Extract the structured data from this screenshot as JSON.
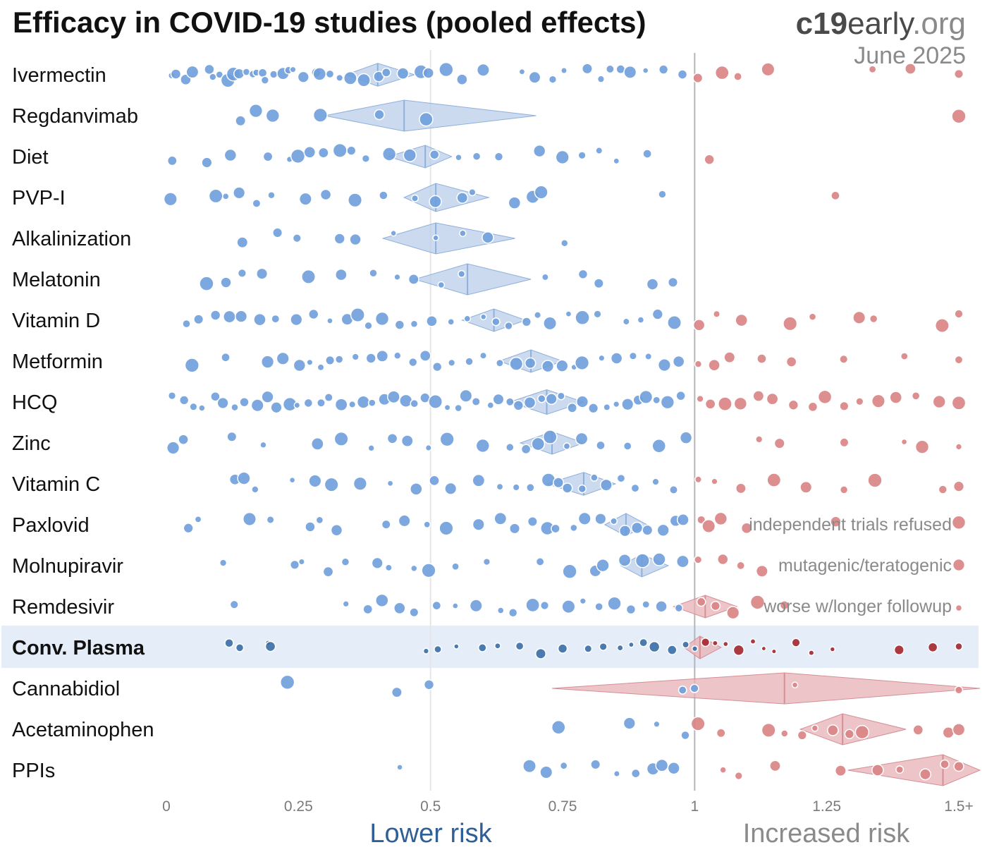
{
  "header": {
    "title": "Efficacy in COVID-19 studies (pooled effects)",
    "brand_bold": "c19",
    "brand_rest": "early",
    "brand_tld": ".org",
    "date": "June 2025"
  },
  "axis": {
    "lower_label": "Lower risk",
    "higher_label": "Increased risk"
  },
  "colors": {
    "benefit_point": "#6f9fdc",
    "harm_point": "#d98384",
    "benefit_diamond": "#b9cde9",
    "harm_diamond": "#e7b0b5",
    "highlight_row": "#e5edf8",
    "highlight_benefit": "#3a6ea5",
    "highlight_harm": "#a3262c",
    "lower_label": "#2f5f96",
    "higher_label": "#8a8a8a"
  },
  "chart_data": {
    "type": "scatter",
    "xlim": [
      0,
      1.5
    ],
    "x_ticks": [
      0,
      0.25,
      0.5,
      0.75,
      1,
      1.25,
      1.5
    ],
    "x_tick_labels": [
      "0",
      "0.25",
      "0.5",
      "0.75",
      "1",
      "1.25",
      "1.5+"
    ],
    "reference_line": 1,
    "rows": [
      {
        "name": "Ivermectin",
        "pooled": 0.4,
        "ci": [
          0.34,
          0.47
        ],
        "highlight": false,
        "annotation": "",
        "points": [
          0.01,
          0.02,
          0.04,
          0.05,
          0.08,
          0.09,
          0.1,
          0.12,
          0.13,
          0.14,
          0.15,
          0.16,
          0.17,
          0.18,
          0.19,
          0.2,
          0.22,
          0.23,
          0.24,
          0.26,
          0.28,
          0.29,
          0.31,
          0.33,
          0.35,
          0.37,
          0.4,
          0.42,
          0.45,
          0.48,
          0.5,
          0.53,
          0.56,
          0.6,
          0.67,
          0.7,
          0.73,
          0.75,
          0.8,
          0.82,
          0.84,
          0.86,
          0.88,
          0.91,
          0.94,
          0.98,
          1.01,
          1.05,
          1.08,
          1.14,
          1.34,
          1.41,
          1.5
        ]
      },
      {
        "name": "Regdanvimab",
        "pooled": 0.45,
        "ci": [
          0.3,
          0.7
        ],
        "highlight": false,
        "annotation": "",
        "points": [
          0.14,
          0.17,
          0.2,
          0.29,
          0.4,
          0.49,
          1.5
        ]
      },
      {
        "name": "Diet",
        "pooled": 0.49,
        "ci": [
          0.42,
          0.54
        ],
        "highlight": false,
        "annotation": "",
        "points": [
          0.01,
          0.08,
          0.12,
          0.19,
          0.23,
          0.25,
          0.27,
          0.3,
          0.33,
          0.35,
          0.38,
          0.42,
          0.46,
          0.51,
          0.55,
          0.59,
          0.63,
          0.71,
          0.75,
          0.79,
          0.82,
          0.85,
          0.91,
          1.03
        ]
      },
      {
        "name": "PVP-I",
        "pooled": 0.51,
        "ci": [
          0.45,
          0.61
        ],
        "highlight": false,
        "annotation": "",
        "points": [
          0.01,
          0.09,
          0.11,
          0.14,
          0.17,
          0.2,
          0.26,
          0.3,
          0.36,
          0.41,
          0.47,
          0.51,
          0.56,
          0.58,
          0.66,
          0.69,
          0.71,
          0.94,
          1.27
        ]
      },
      {
        "name": "Alkalinization",
        "pooled": 0.51,
        "ci": [
          0.41,
          0.66
        ],
        "highlight": false,
        "annotation": "",
        "points": [
          0.14,
          0.21,
          0.25,
          0.33,
          0.36,
          0.43,
          0.51,
          0.56,
          0.61,
          0.75
        ]
      },
      {
        "name": "Melatonin",
        "pooled": 0.57,
        "ci": [
          0.47,
          0.69
        ],
        "highlight": false,
        "annotation": "",
        "points": [
          0.08,
          0.11,
          0.14,
          0.18,
          0.27,
          0.33,
          0.39,
          0.44,
          0.47,
          0.52,
          0.56,
          0.72,
          0.79,
          0.82,
          0.92,
          0.96
        ]
      },
      {
        "name": "Vitamin D",
        "pooled": 0.62,
        "ci": [
          0.56,
          0.68
        ],
        "highlight": false,
        "annotation": "",
        "points": [
          0.04,
          0.06,
          0.09,
          0.12,
          0.14,
          0.18,
          0.21,
          0.25,
          0.28,
          0.31,
          0.34,
          0.36,
          0.38,
          0.41,
          0.44,
          0.47,
          0.5,
          0.54,
          0.57,
          0.6,
          0.62,
          0.65,
          0.68,
          0.7,
          0.73,
          0.76,
          0.79,
          0.82,
          0.87,
          0.9,
          0.93,
          0.96,
          1.01,
          1.04,
          1.09,
          1.18,
          1.22,
          1.31,
          1.34,
          1.47,
          1.5
        ]
      },
      {
        "name": "Metformin",
        "pooled": 0.69,
        "ci": [
          0.63,
          0.75
        ],
        "highlight": false,
        "annotation": "",
        "points": [
          0.05,
          0.11,
          0.19,
          0.22,
          0.25,
          0.27,
          0.29,
          0.31,
          0.33,
          0.36,
          0.39,
          0.41,
          0.44,
          0.47,
          0.49,
          0.51,
          0.54,
          0.57,
          0.6,
          0.63,
          0.66,
          0.69,
          0.72,
          0.75,
          0.77,
          0.79,
          0.82,
          0.85,
          0.88,
          0.91,
          0.94,
          0.97,
          1.01,
          1.04,
          1.07,
          1.13,
          1.18,
          1.28,
          1.4,
          1.5
        ]
      },
      {
        "name": "HCQ",
        "pooled": 0.72,
        "ci": [
          0.65,
          0.79
        ],
        "highlight": false,
        "annotation": "",
        "points": [
          0.01,
          0.03,
          0.05,
          0.07,
          0.09,
          0.11,
          0.13,
          0.15,
          0.17,
          0.19,
          0.21,
          0.23,
          0.25,
          0.27,
          0.29,
          0.31,
          0.33,
          0.35,
          0.37,
          0.39,
          0.41,
          0.43,
          0.45,
          0.47,
          0.49,
          0.51,
          0.53,
          0.55,
          0.57,
          0.59,
          0.61,
          0.63,
          0.65,
          0.67,
          0.69,
          0.71,
          0.73,
          0.75,
          0.77,
          0.79,
          0.81,
          0.83,
          0.85,
          0.87,
          0.89,
          0.91,
          0.93,
          0.95,
          0.97,
          1.01,
          1.03,
          1.06,
          1.09,
          1.12,
          1.15,
          1.19,
          1.22,
          1.25,
          1.28,
          1.31,
          1.35,
          1.38,
          1.42,
          1.46,
          1.5
        ]
      },
      {
        "name": "Zinc",
        "pooled": 0.73,
        "ci": [
          0.67,
          0.79
        ],
        "highlight": false,
        "annotation": "",
        "points": [
          0.01,
          0.03,
          0.12,
          0.18,
          0.29,
          0.33,
          0.39,
          0.43,
          0.46,
          0.5,
          0.53,
          0.6,
          0.65,
          0.68,
          0.7,
          0.73,
          0.76,
          0.79,
          0.82,
          0.87,
          0.93,
          0.98,
          1.12,
          1.16,
          1.28,
          1.4,
          1.43,
          1.5
        ]
      },
      {
        "name": "Vitamin C",
        "pooled": 0.79,
        "ci": [
          0.72,
          0.85
        ],
        "highlight": false,
        "annotation": "",
        "points": [
          0.13,
          0.15,
          0.17,
          0.24,
          0.28,
          0.31,
          0.37,
          0.42,
          0.47,
          0.51,
          0.54,
          0.59,
          0.63,
          0.66,
          0.69,
          0.72,
          0.74,
          0.76,
          0.79,
          0.81,
          0.83,
          0.86,
          0.89,
          0.93,
          0.96,
          1.01,
          1.04,
          1.09,
          1.15,
          1.21,
          1.28,
          1.34,
          1.47,
          1.5
        ]
      },
      {
        "name": "Paxlovid",
        "pooled": 0.87,
        "ci": [
          0.83,
          0.91
        ],
        "highlight": false,
        "annotation": "independent trials refused",
        "points": [
          0.04,
          0.06,
          0.16,
          0.2,
          0.27,
          0.29,
          0.32,
          0.42,
          0.45,
          0.49,
          0.53,
          0.59,
          0.63,
          0.66,
          0.69,
          0.72,
          0.74,
          0.77,
          0.79,
          0.82,
          0.85,
          0.87,
          0.89,
          0.91,
          0.94,
          0.96,
          0.98,
          1.01,
          1.03,
          1.05,
          1.1,
          1.27,
          1.5
        ]
      },
      {
        "name": "Molnupiravir",
        "pooled": 0.9,
        "ci": [
          0.86,
          0.95
        ],
        "highlight": false,
        "annotation": "mutagenic/teratogenic",
        "points": [
          0.11,
          0.24,
          0.26,
          0.31,
          0.34,
          0.4,
          0.42,
          0.47,
          0.5,
          0.55,
          0.61,
          0.71,
          0.76,
          0.81,
          0.83,
          0.87,
          0.9,
          0.93,
          0.98,
          1.01,
          1.05,
          1.09,
          1.13,
          1.5
        ]
      },
      {
        "name": "Remdesivir",
        "pooled": 1.02,
        "ci": [
          0.96,
          1.08
        ],
        "highlight": false,
        "annotation": "worse w/longer followup",
        "points": [
          0.13,
          0.34,
          0.38,
          0.41,
          0.44,
          0.47,
          0.51,
          0.55,
          0.59,
          0.63,
          0.66,
          0.69,
          0.72,
          0.76,
          0.79,
          0.82,
          0.85,
          0.88,
          0.91,
          0.94,
          0.97,
          1.01,
          1.04,
          1.07,
          1.12,
          1.17,
          1.5
        ]
      },
      {
        "name": "Conv. Plasma",
        "pooled": 1.01,
        "ci": [
          0.98,
          1.05
        ],
        "highlight": true,
        "annotation": "",
        "points": [
          0.12,
          0.14,
          0.19,
          0.2,
          0.49,
          0.51,
          0.55,
          0.6,
          0.63,
          0.67,
          0.71,
          0.75,
          0.8,
          0.83,
          0.86,
          0.88,
          0.9,
          0.92,
          0.96,
          0.98,
          1.0,
          1.02,
          1.04,
          1.06,
          1.08,
          1.11,
          1.13,
          1.15,
          1.19,
          1.22,
          1.26,
          1.39,
          1.45,
          1.5
        ]
      },
      {
        "name": "Cannabidiol",
        "pooled": 1.17,
        "ci": [
          0.73,
          1.6
        ],
        "highlight": false,
        "annotation": "",
        "points": [
          0.23,
          0.44,
          0.5,
          0.98,
          1.0,
          1.19,
          1.5
        ]
      },
      {
        "name": "Acetaminophen",
        "pooled": 1.28,
        "ci": [
          1.2,
          1.4
        ],
        "highlight": false,
        "annotation": "",
        "points": [
          0.74,
          0.88,
          0.93,
          0.98,
          1.01,
          1.05,
          1.14,
          1.17,
          1.2,
          1.23,
          1.26,
          1.29,
          1.32,
          1.42,
          1.48,
          1.5
        ]
      },
      {
        "name": "PPIs",
        "pooled": 1.47,
        "ci": [
          1.29,
          1.6
        ],
        "highlight": false,
        "annotation": "",
        "points": [
          0.44,
          0.69,
          0.72,
          0.75,
          0.81,
          0.85,
          0.89,
          0.92,
          0.94,
          0.96,
          1.05,
          1.08,
          1.15,
          1.28,
          1.35,
          1.39,
          1.44,
          1.47,
          1.5
        ]
      }
    ]
  }
}
